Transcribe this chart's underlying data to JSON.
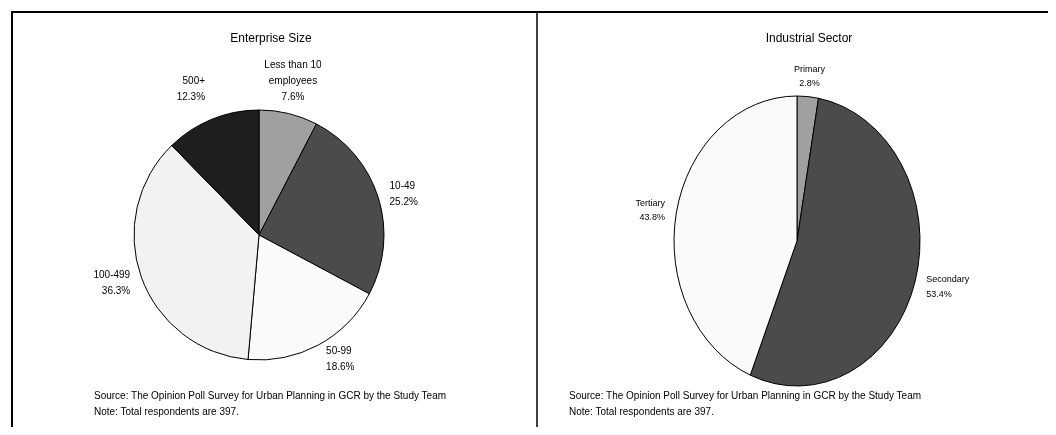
{
  "chart_data": [
    {
      "type": "pie",
      "title": "Enterprise Size",
      "categories": [
        "Less than 10 employees",
        "10-49",
        "50-99",
        "100-499",
        "500+"
      ],
      "values": [
        7.6,
        25.2,
        18.6,
        36.3,
        12.3
      ],
      "colors": [
        "#a0a0a0",
        "#4b4b4b",
        "#fafafa",
        "#f2f2f2",
        "#1e1e1e"
      ],
      "value_labels": [
        "7.6%",
        "25.2%",
        "18.6%",
        "36.3%",
        "12.3%"
      ],
      "annotations": [
        "Source: The Opinion Poll Survey for Urban Planning in GCR by the Study Team",
        "Note: Total respondents are 397."
      ]
    },
    {
      "type": "pie",
      "title": "Industrial Sector",
      "categories": [
        "Primary",
        "Secondary",
        "Tertiary"
      ],
      "values": [
        2.8,
        53.4,
        43.8
      ],
      "colors": [
        "#a0a0a0",
        "#4b4b4b",
        "#fafafa"
      ],
      "value_labels": [
        "2.8%",
        "53.4%",
        "43.8%"
      ],
      "annotations": [
        "Source: The Opinion Poll Survey for Urban Planning in GCR by the Study Team",
        "Note: Total respondents are 397."
      ]
    }
  ]
}
